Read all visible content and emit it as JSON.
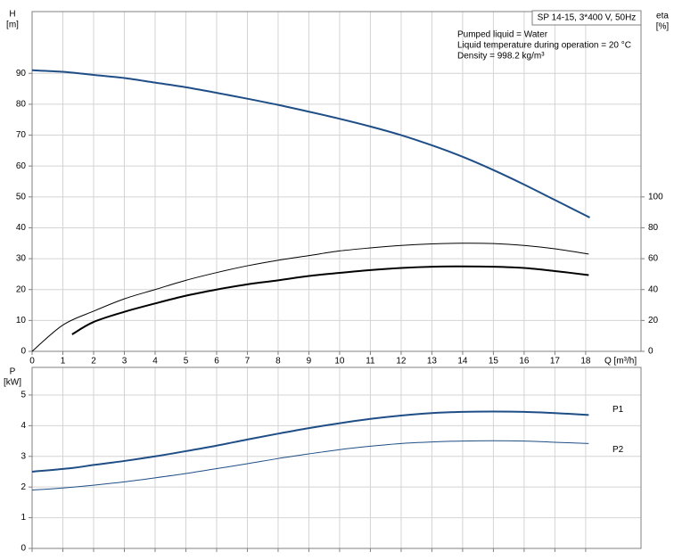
{
  "chart_data": [
    {
      "type": "line",
      "title": "SP 14-15, 3*400 V, 50Hz",
      "annotations": [
        "Pumped liquid = Water",
        "Liquid temperature during operation = 20 °C",
        "Density = 998.2 kg/m³"
      ],
      "ylabel": "H",
      "yunit": "[m]",
      "y2label": "eta",
      "y2unit": "[%]",
      "xlabel": "Q [m³/h]",
      "xlim": [
        0,
        19.8
      ],
      "xticks": [
        0,
        1,
        2,
        3,
        4,
        5,
        6,
        7,
        8,
        9,
        10,
        11,
        12,
        13,
        14,
        15,
        16,
        17,
        18
      ],
      "ylim": [
        0,
        110
      ],
      "yticks": [
        0,
        10,
        20,
        30,
        40,
        50,
        60,
        70,
        80,
        90
      ],
      "y2lim": [
        0,
        220
      ],
      "y2ticks": [
        0,
        20,
        40,
        60,
        80,
        100
      ],
      "grid": true,
      "series": [
        {
          "color": "#1f4e87",
          "width": 2,
          "x": [
            0,
            1,
            2,
            3,
            4,
            5,
            6,
            7,
            8,
            9,
            10,
            11,
            12,
            13,
            14,
            15,
            16,
            17,
            18,
            18.1
          ],
          "values": [
            91,
            90.5,
            89.5,
            88.5,
            87,
            85.5,
            83.7,
            81.8,
            79.8,
            77.6,
            75.3,
            72.8,
            70,
            66.7,
            63,
            58.7,
            54,
            49,
            44,
            43.5
          ]
        },
        {
          "color": "#000000",
          "width": 1,
          "axis": "y2",
          "x": [
            0,
            1,
            2,
            3,
            4,
            5,
            6,
            7,
            8,
            9,
            10,
            11,
            12,
            13,
            14,
            15,
            16,
            17,
            18.1
          ],
          "values": [
            0,
            17,
            26,
            34,
            40,
            46,
            51,
            55.4,
            59,
            62,
            65,
            67,
            68.6,
            69.6,
            70,
            69.8,
            68.6,
            66.4,
            63
          ]
        },
        {
          "color": "#000000",
          "width": 2,
          "axis": "y2",
          "x": [
            1.3,
            2,
            3,
            4,
            5,
            6,
            7,
            8,
            9,
            10,
            11,
            12,
            13,
            14,
            15,
            16,
            17,
            18.1
          ],
          "values": [
            11,
            19,
            25.6,
            31,
            36,
            40,
            43.4,
            46,
            48.8,
            50.8,
            52.6,
            54,
            54.8,
            55,
            54.8,
            54,
            52,
            49.4
          ]
        }
      ]
    },
    {
      "type": "line",
      "ylabel": "P",
      "yunit": "[kW]",
      "xlim": [
        0,
        19.8
      ],
      "xticks": [
        0,
        1,
        2,
        3,
        4,
        5,
        6,
        7,
        8,
        9,
        10,
        11,
        12,
        13,
        14,
        15,
        16,
        17,
        18
      ],
      "show_xtick_labels": false,
      "ylim": [
        0,
        5.9
      ],
      "yticks": [
        0,
        1,
        2,
        3,
        4,
        5
      ],
      "grid": true,
      "series": [
        {
          "name": "P1",
          "color": "#1f4e87",
          "width": 2,
          "x": [
            0,
            1.3,
            2,
            3,
            4,
            5,
            6,
            7,
            8,
            9,
            10,
            11,
            12,
            13,
            14,
            15,
            16,
            17,
            18.1
          ],
          "values": [
            2.5,
            2.62,
            2.72,
            2.85,
            3.0,
            3.17,
            3.35,
            3.55,
            3.74,
            3.92,
            4.08,
            4.22,
            4.33,
            4.41,
            4.45,
            4.46,
            4.45,
            4.41,
            4.35
          ]
        },
        {
          "name": "P2",
          "color": "#1f4e87",
          "width": 1,
          "x": [
            0,
            1,
            2,
            3,
            4,
            5,
            6,
            7,
            8,
            9,
            10,
            11,
            12,
            13,
            14,
            15,
            16,
            17,
            18.1
          ],
          "values": [
            1.9,
            1.97,
            2.06,
            2.17,
            2.3,
            2.44,
            2.6,
            2.76,
            2.93,
            3.08,
            3.22,
            3.33,
            3.42,
            3.47,
            3.5,
            3.51,
            3.5,
            3.46,
            3.42
          ]
        }
      ]
    }
  ]
}
